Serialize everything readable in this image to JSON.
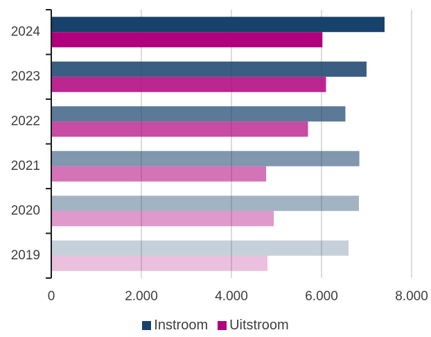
{
  "chart_data": {
    "type": "bar",
    "orientation": "horizontal",
    "categories": [
      "2024",
      "2023",
      "2022",
      "2021",
      "2020",
      "2019"
    ],
    "series": [
      {
        "name": "Instroom",
        "color": "#17426b",
        "values": [
          7400,
          7000,
          6530,
          6840,
          6830,
          6600
        ],
        "opacities": [
          1.0,
          0.85,
          0.7,
          0.55,
          0.4,
          0.25
        ]
      },
      {
        "name": "Uitstroom",
        "color": "#b0007d",
        "values": [
          6020,
          6100,
          5700,
          4770,
          4940,
          4800
        ],
        "opacities": [
          1.0,
          0.85,
          0.7,
          0.55,
          0.4,
          0.25
        ]
      }
    ],
    "x_ticks": [
      "0",
      "2.000",
      "4.000",
      "6.000",
      "8.000"
    ],
    "x_tick_values": [
      0,
      2000,
      4000,
      6000,
      8000
    ],
    "xlim": [
      0,
      8000
    ],
    "grid": "vertical",
    "legend": "bottom",
    "title": "",
    "xlabel": "",
    "ylabel": ""
  }
}
